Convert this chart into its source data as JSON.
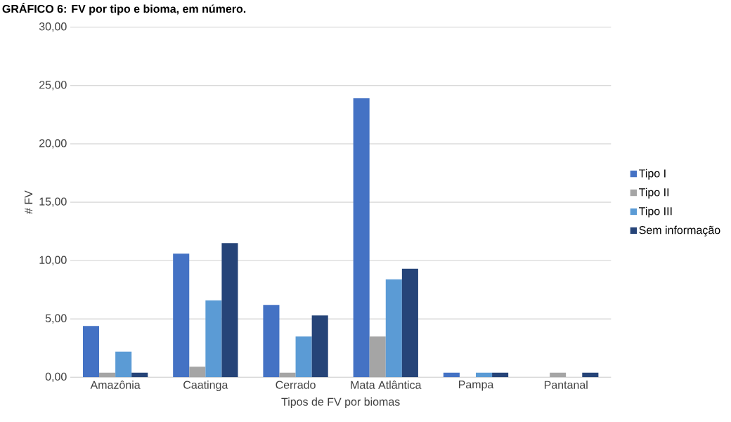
{
  "chart_data": {
    "type": "bar",
    "title": "GRÁFICO 6: FV por tipo e bioma, em número.",
    "xlabel": "Tipos de FV por biomas",
    "ylabel": "# FV",
    "categories": [
      "Amazônia",
      "Caatinga",
      "Cerrado",
      "Mata Atlântica",
      "Pampa",
      "Pantanal"
    ],
    "series": [
      {
        "name": "Tipo I",
        "color": "#4472c4",
        "values": [
          4.4,
          10.6,
          6.2,
          23.9,
          0.4,
          0
        ]
      },
      {
        "name": "Tipo II",
        "color": "#a5a5a5",
        "values": [
          0.4,
          0.9,
          0.4,
          3.5,
          0,
          0.4
        ]
      },
      {
        "name": "Tipo III",
        "color": "#5b9bd5",
        "values": [
          2.2,
          6.6,
          3.5,
          8.4,
          0.4,
          0
        ]
      },
      {
        "name": "Sem informação",
        "color": "#264478",
        "values": [
          0.4,
          11.5,
          5.3,
          9.3,
          0.4,
          0.4
        ]
      }
    ],
    "ylim": [
      0,
      30
    ],
    "yticks": [
      {
        "value": 0,
        "label": "0,00"
      },
      {
        "value": 5,
        "label": "5,00"
      },
      {
        "value": 10,
        "label": "10,00"
      },
      {
        "value": 15,
        "label": "15,00"
      },
      {
        "value": 20,
        "label": "20,00"
      },
      {
        "value": 25,
        "label": "25,00"
      },
      {
        "value": 30,
        "label": "30,00"
      }
    ],
    "grid": "y",
    "legend": "right"
  }
}
